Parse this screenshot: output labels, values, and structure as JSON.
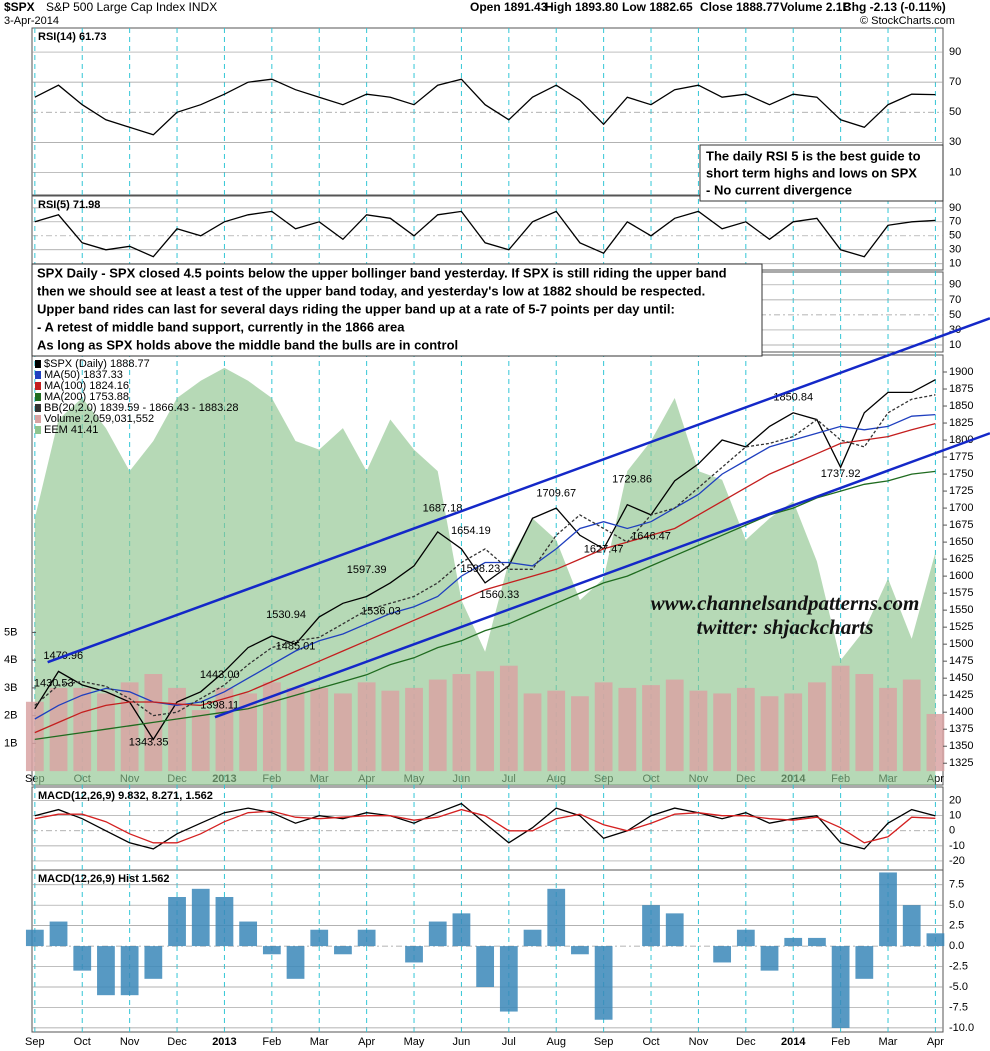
{
  "header": {
    "symbol": "$SPX",
    "name": "S&P 500 Large Cap Index INDX",
    "date": "3-Apr-2014",
    "quote": [
      "Open 1891.43",
      "High 1893.80",
      "Low 1882.65",
      "Close 1888.77",
      "Volume 2.1B",
      "Chg -2.13 (-0.11%)"
    ],
    "credit": "© StockCharts.com"
  },
  "x_axis": {
    "xlim": [
      -0.06,
      19.16
    ],
    "x": [
      0,
      0.5,
      1,
      1.5,
      2,
      2.5,
      3,
      3.5,
      4,
      4.5,
      5,
      5.5,
      6,
      6.5,
      7,
      7.5,
      8,
      8.5,
      9,
      9.5,
      10,
      10.5,
      11,
      11.5,
      12,
      12.5,
      13,
      13.5,
      14,
      14.5,
      15,
      15.5,
      16,
      16.5,
      17,
      17.5,
      18,
      18.5,
      19
    ],
    "xticks": [
      {
        "value": 0,
        "label": "Sep"
      },
      {
        "value": 1,
        "label": "Oct"
      },
      {
        "value": 2,
        "label": "Nov"
      },
      {
        "value": 3,
        "label": "Dec"
      },
      {
        "value": 4,
        "label": "2013"
      },
      {
        "value": 5,
        "label": "Feb"
      },
      {
        "value": 6,
        "label": "Mar"
      },
      {
        "value": 7,
        "label": "Apr"
      },
      {
        "value": 8,
        "label": "May"
      },
      {
        "value": 9,
        "label": "Jun"
      },
      {
        "value": 10,
        "label": "Jul"
      },
      {
        "value": 11,
        "label": "Aug"
      },
      {
        "value": 12,
        "label": "Sep"
      },
      {
        "value": 13,
        "label": "Oct"
      },
      {
        "value": 14,
        "label": "Nov"
      },
      {
        "value": 15,
        "label": "Dec"
      },
      {
        "value": 16,
        "label": "2014"
      },
      {
        "value": 17,
        "label": "Feb"
      },
      {
        "value": 18,
        "label": "Mar"
      },
      {
        "value": 19,
        "label": "Apr"
      }
    ]
  },
  "chart_data": [
    {
      "type": "line",
      "label": "RSI(14) 61.73",
      "ylim": [
        -5,
        106
      ],
      "yticks": [
        90,
        70,
        50,
        30,
        10
      ],
      "grid": true,
      "series": [
        {
          "color": "#000000",
          "values": [
            60,
            68,
            55,
            45,
            40,
            35,
            50,
            55,
            62,
            70,
            72,
            65,
            60,
            55,
            62,
            60,
            55,
            68,
            72,
            55,
            45,
            60,
            68,
            58,
            42,
            60,
            55,
            65,
            68,
            60,
            62,
            55,
            62,
            60,
            45,
            40,
            55,
            62,
            61.73
          ]
        }
      ]
    },
    {
      "type": "line",
      "label": "RSI(5) 71.98",
      "ylim": [
        1,
        107
      ],
      "yticks": [
        90,
        70,
        50,
        30,
        10
      ],
      "grid": true,
      "series": [
        {
          "color": "#000000",
          "values": [
            70,
            80,
            40,
            30,
            35,
            20,
            60,
            50,
            70,
            80,
            85,
            60,
            70,
            45,
            80,
            75,
            50,
            80,
            85,
            40,
            30,
            70,
            85,
            40,
            25,
            70,
            50,
            75,
            85,
            60,
            70,
            45,
            70,
            75,
            30,
            20,
            65,
            70,
            71.98
          ]
        }
      ]
    },
    {
      "type": "line",
      "ylim": [
        0.7,
        107
      ],
      "yticks": [
        90,
        70,
        50,
        30,
        10
      ],
      "grid": true,
      "series": []
    },
    {
      "type": "area",
      "ylim": [
        36,
        46
      ],
      "series": [
        {
          "name": "EEM 41.41",
          "color": "#8fc48f",
          "values": [
            42.2,
            44.5,
            45.0,
            44.3,
            43.3,
            44.0,
            45.0,
            45.4,
            45.7,
            45.4,
            45.0,
            44.0,
            43.8,
            44.3,
            43.3,
            44.5,
            43.8,
            43.3,
            40.3,
            39.1,
            41.2,
            42.2,
            41.7,
            40.3,
            40.8,
            43.3,
            44.0,
            45.0,
            43.3,
            43.1,
            41.7,
            42.2,
            42.6,
            41.2,
            38.9,
            39.6,
            40.8,
            39.4,
            41.41
          ]
        }
      ]
    },
    {
      "type": "bar",
      "ylim": [
        -0.5,
        15
      ],
      "axis_side": "left",
      "yticks": [
        {
          "value": 5,
          "label": "5B"
        },
        {
          "value": 4,
          "label": "4B"
        },
        {
          "value": 3,
          "label": "3B"
        },
        {
          "value": 2,
          "label": "2B"
        },
        {
          "value": 1,
          "label": "1B"
        }
      ],
      "series": [
        {
          "name": "Volume 2,059,031,552",
          "color": "#d9a3a3",
          "values": [
            2.5,
            3.0,
            3.0,
            2.8,
            3.2,
            3.5,
            3.0,
            2.2,
            3.0,
            2.8,
            3.2,
            3.0,
            3.0,
            2.8,
            3.2,
            2.9,
            3.0,
            3.3,
            3.5,
            3.6,
            3.8,
            2.8,
            2.9,
            2.7,
            3.2,
            3.0,
            3.1,
            3.3,
            2.9,
            2.8,
            3.0,
            2.7,
            2.8,
            3.2,
            3.8,
            3.5,
            3.0,
            3.3,
            2.06
          ]
        }
      ]
    },
    {
      "type": "line",
      "ylim": [
        1293,
        1925
      ],
      "yticks": [
        1900,
        1875,
        1850,
        1825,
        1800,
        1775,
        1750,
        1725,
        1700,
        1675,
        1650,
        1625,
        1600,
        1575,
        1550,
        1525,
        1500,
        1475,
        1450,
        1425,
        1400,
        1375,
        1350,
        1325
      ],
      "series": [
        {
          "name": "$SPX (Daily) 1888.77",
          "color": "#000000",
          "values": [
            1405,
            1460,
            1440,
            1430,
            1415,
            1360,
            1415,
            1430,
            1460,
            1495,
            1512,
            1500,
            1540,
            1560,
            1570,
            1590,
            1615,
            1665,
            1640,
            1590,
            1615,
            1685,
            1700,
            1660,
            1640,
            1705,
            1690,
            1740,
            1765,
            1800,
            1790,
            1820,
            1840,
            1830,
            1760,
            1840,
            1870,
            1870,
            1888.77
          ]
        },
        {
          "name": "MA(50) 1837.33",
          "color": "#1f3fbf",
          "values": [
            1390,
            1410,
            1425,
            1435,
            1430,
            1415,
            1410,
            1415,
            1430,
            1450,
            1470,
            1490,
            1505,
            1515,
            1530,
            1545,
            1555,
            1570,
            1600,
            1620,
            1620,
            1615,
            1640,
            1670,
            1680,
            1670,
            1680,
            1700,
            1720,
            1750,
            1770,
            1790,
            1800,
            1810,
            1820,
            1815,
            1820,
            1835,
            1837.33
          ]
        },
        {
          "name": "MA(100) 1824.16",
          "color": "#c41e1e",
          "values": [
            1370,
            1385,
            1400,
            1410,
            1415,
            1415,
            1412,
            1410,
            1420,
            1430,
            1445,
            1460,
            1475,
            1490,
            1505,
            1520,
            1535,
            1550,
            1565,
            1580,
            1590,
            1600,
            1610,
            1625,
            1640,
            1650,
            1660,
            1670,
            1690,
            1710,
            1730,
            1750,
            1765,
            1780,
            1795,
            1800,
            1805,
            1815,
            1824.16
          ]
        },
        {
          "name": "MA(200) 1753.88",
          "color": "#1f6b1f",
          "values": [
            1360,
            1365,
            1370,
            1375,
            1380,
            1385,
            1390,
            1395,
            1400,
            1405,
            1415,
            1425,
            1435,
            1445,
            1455,
            1470,
            1480,
            1495,
            1505,
            1520,
            1530,
            1545,
            1560,
            1575,
            1590,
            1600,
            1615,
            1630,
            1645,
            1660,
            1675,
            1690,
            1700,
            1715,
            1725,
            1735,
            1740,
            1750,
            1753.88
          ]
        },
        {
          "name": "BB(20,2.0) 1839.59 - 1866.43 - 1883.28",
          "color": "#333333",
          "dashed": true,
          "values": [
            1410,
            1440,
            1445,
            1438,
            1420,
            1395,
            1400,
            1420,
            1440,
            1470,
            1495,
            1505,
            1510,
            1530,
            1550,
            1560,
            1570,
            1590,
            1620,
            1640,
            1610,
            1610,
            1660,
            1690,
            1670,
            1650,
            1690,
            1700,
            1730,
            1760,
            1790,
            1795,
            1805,
            1830,
            1800,
            1790,
            1840,
            1860,
            1866.43
          ]
        }
      ],
      "annotations": [
        {
          "x": 0.6,
          "value": 1470.96,
          "label": "1470.96"
        },
        {
          "x": 0.4,
          "value": 1430.53,
          "label": "1430.53"
        },
        {
          "x": 2.4,
          "value": 1343.35,
          "label": "1343.35"
        },
        {
          "x": 3.9,
          "value": 1443.0,
          "label": "1443.00"
        },
        {
          "x": 3.9,
          "value": 1398.11,
          "label": "1398.11"
        },
        {
          "x": 5.3,
          "value": 1530.94,
          "label": "1530.94"
        },
        {
          "x": 5.5,
          "value": 1485.01,
          "label": "1485.01"
        },
        {
          "x": 7.0,
          "value": 1597.39,
          "label": "1597.39"
        },
        {
          "x": 7.3,
          "value": 1536.03,
          "label": "1536.03"
        },
        {
          "x": 8.6,
          "value": 1687.18,
          "label": "1687.18"
        },
        {
          "x": 9.2,
          "value": 1654.19,
          "label": "1654.19"
        },
        {
          "x": 9.4,
          "value": 1598.23,
          "label": "1598.23"
        },
        {
          "x": 9.8,
          "value": 1560.33,
          "label": "1560.33"
        },
        {
          "x": 11.0,
          "value": 1709.67,
          "label": "1709.67"
        },
        {
          "x": 12.0,
          "value": 1627.47,
          "label": "1627.47"
        },
        {
          "x": 12.6,
          "value": 1729.86,
          "label": "1729.86"
        },
        {
          "x": 13.0,
          "value": 1646.47,
          "label": "1646.47"
        },
        {
          "x": 16.0,
          "value": 1850.84,
          "label": "1850.84"
        },
        {
          "x": 17.0,
          "value": 1737.92,
          "label": "1737.92"
        }
      ],
      "trendlines": [
        {
          "color": "#1428c8",
          "x": [
            0.27,
            20.15
          ],
          "values": [
            1473.5,
            1979
          ]
        },
        {
          "color": "#1428c8",
          "x": [
            3.8,
            20.15
          ],
          "values": [
            1392.6,
            1810
          ]
        }
      ],
      "watermark": [
        "www.channelsandpatterns.com",
        "twitter: shjackcharts"
      ]
    },
    {
      "type": "line",
      "label": "MACD(12,26,9) 9.832, 8.271, 1.562",
      "ylim": [
        -26,
        29
      ],
      "yticks": [
        20,
        10,
        0,
        -10,
        -20
      ],
      "grid": true,
      "series": [
        {
          "color": "#000000",
          "values": [
            10,
            14,
            8,
            0,
            -8,
            -12,
            -2,
            5,
            12,
            15,
            12,
            5,
            10,
            8,
            12,
            10,
            5,
            12,
            18,
            5,
            -8,
            2,
            15,
            10,
            -5,
            0,
            10,
            15,
            12,
            8,
            12,
            5,
            8,
            10,
            -8,
            -12,
            5,
            14,
            9.832
          ]
        },
        {
          "color": "#d42020",
          "values": [
            8,
            11,
            11,
            6,
            -2,
            -8,
            -8,
            -2,
            6,
            12,
            13,
            9,
            8,
            9,
            10,
            10,
            7,
            9,
            14,
            10,
            0,
            0,
            8,
            11,
            4,
            0,
            5,
            11,
            12,
            10,
            10,
            8,
            7,
            9,
            2,
            -8,
            -4,
            9,
            8.271
          ]
        }
      ]
    },
    {
      "type": "bar",
      "label": "MACD(12,26,9) Hist 1.562",
      "ylim": [
        -10.5,
        9.3
      ],
      "grid": true,
      "yticks": [
        {
          "value": 7.5,
          "label": "7.5"
        },
        {
          "value": 5,
          "label": "5.0"
        },
        {
          "value": 2.5,
          "label": "2.5"
        },
        {
          "value": 0,
          "label": "0.0"
        },
        {
          "value": -2.5,
          "label": "-2.5"
        },
        {
          "value": -5,
          "label": "-5.0"
        },
        {
          "value": -7.5,
          "label": "-7.5"
        },
        {
          "value": -10,
          "label": "-10.0"
        }
      ],
      "series": [
        {
          "color": "#3a87b8",
          "values": [
            2,
            3,
            -3,
            -6,
            -6,
            -4,
            6,
            7,
            6,
            3,
            -1,
            -4,
            2,
            -1,
            2,
            0,
            -2,
            3,
            4,
            -5,
            -8,
            2,
            7,
            -1,
            -9,
            0,
            5,
            4,
            0,
            -2,
            2,
            -3,
            1,
            1,
            -10,
            -4,
            9,
            5,
            1.562
          ]
        }
      ]
    }
  ],
  "notes": {
    "lines": [
      "SPX Daily - SPX closed 4.5 points below the upper bollinger band yesterday. If SPX is still riding the upper band",
      "then we should see at least a test of the upper band today, and yesterday's low at 1882 should be respected.",
      "Upper band rides can last for several days riding the upper band up at a rate of 5-7 points per day until:",
      "- A retest of middle band support, currently in the 1866 area",
      "As long as SPX holds above the middle band the bulls are in control"
    ]
  },
  "rsi_note": {
    "lines": [
      "The daily RSI 5 is the best guide to",
      "short term highs and lows on SPX",
      "- No current divergence"
    ]
  }
}
